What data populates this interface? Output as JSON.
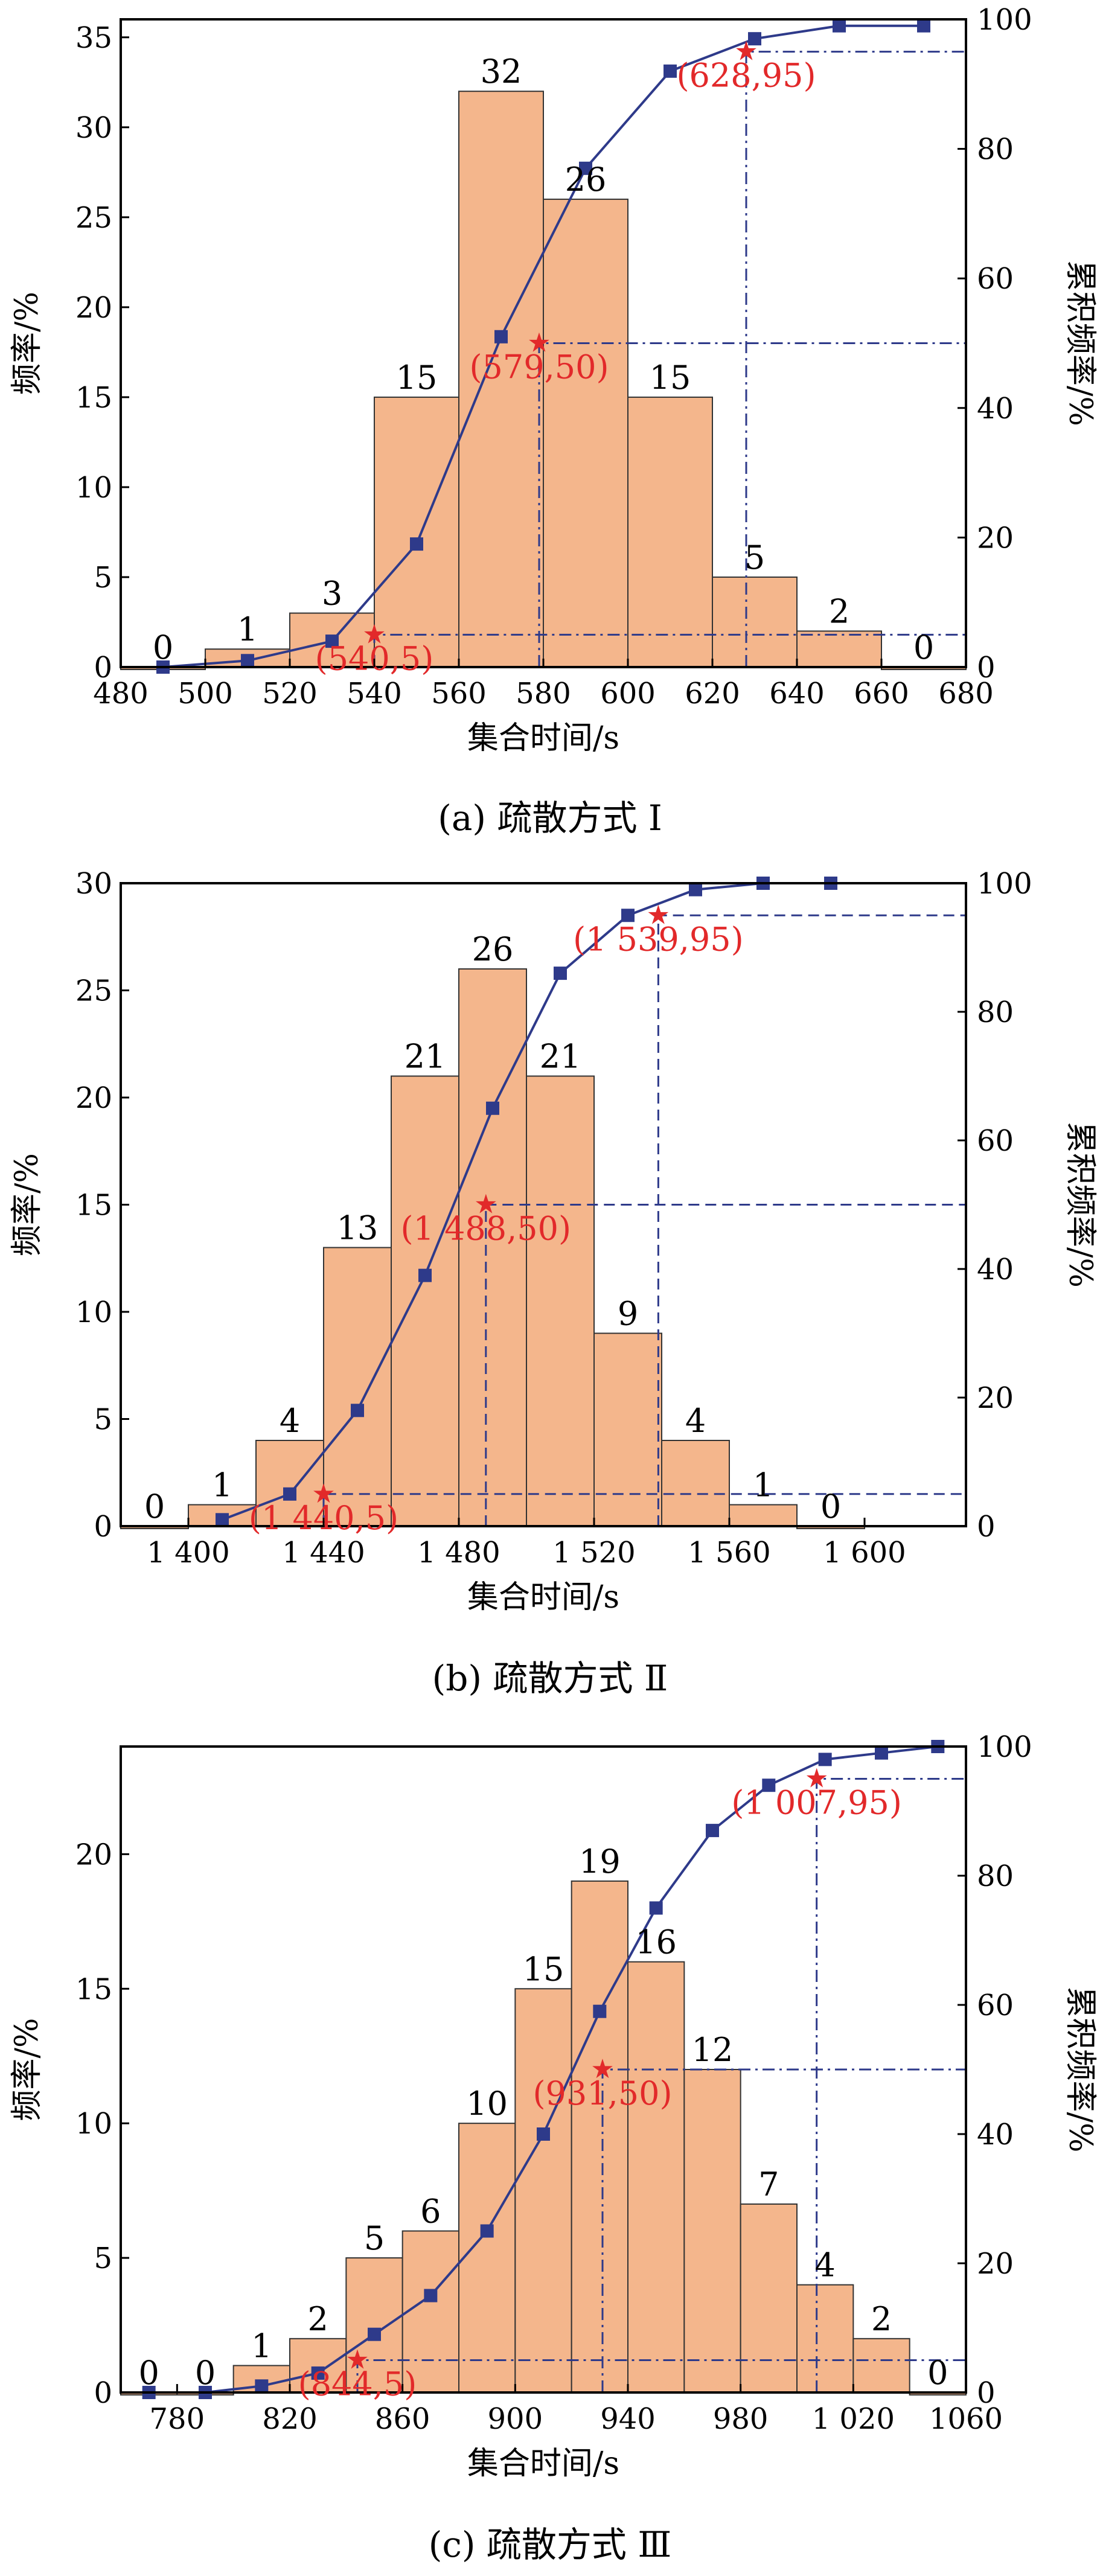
{
  "colors": {
    "bar": "#f4b68c",
    "cumulative": "#2e3a8a",
    "annotation": "#e2292a"
  },
  "chart_data": [
    {
      "type": "bar",
      "caption": "(a) 疏散方式 Ⅰ",
      "xlabel": "集合时间/s",
      "ylabel": "频率/%",
      "y2label": "累积频率/%",
      "xlim": [
        480,
        680
      ],
      "ylim": [
        0,
        36
      ],
      "y2lim": [
        0,
        100
      ],
      "xticks": [
        "480",
        "500",
        "520",
        "540",
        "560",
        "580",
        "600",
        "620",
        "640",
        "660",
        "680"
      ],
      "yticks": [
        "0",
        "5",
        "10",
        "15",
        "20",
        "25",
        "30",
        "35"
      ],
      "y2ticks": [
        "0",
        "20",
        "40",
        "60",
        "80",
        "100"
      ],
      "bin_edges": [
        480,
        500,
        520,
        540,
        560,
        580,
        600,
        620,
        640,
        660,
        680
      ],
      "bins": [
        {
          "start": 480,
          "end": 500,
          "value": 0,
          "label": "0"
        },
        {
          "start": 500,
          "end": 520,
          "value": 1,
          "label": "1"
        },
        {
          "start": 520,
          "end": 540,
          "value": 3,
          "label": "3"
        },
        {
          "start": 540,
          "end": 560,
          "value": 15,
          "label": "15"
        },
        {
          "start": 560,
          "end": 580,
          "value": 32,
          "label": "32"
        },
        {
          "start": 580,
          "end": 600,
          "value": 26,
          "label": "26"
        },
        {
          "start": 600,
          "end": 620,
          "value": 15,
          "label": "15"
        },
        {
          "start": 620,
          "end": 640,
          "value": 5,
          "label": "5"
        },
        {
          "start": 640,
          "end": 660,
          "value": 2,
          "label": "2"
        },
        {
          "start": 660,
          "end": 680,
          "value": 0,
          "label": "0"
        }
      ],
      "cumulative": {
        "x": [
          490,
          510,
          530,
          550,
          570,
          590,
          610,
          630,
          650,
          670
        ],
        "y": [
          0,
          1,
          4,
          19,
          51,
          77,
          92,
          97,
          99,
          99
        ]
      },
      "annotations": [
        {
          "x": 540,
          "y": 5,
          "text": "(540,5)"
        },
        {
          "x": 579,
          "y": 50,
          "text": "(579,50)"
        },
        {
          "x": 628,
          "y": 95,
          "text": "(628,95)"
        }
      ],
      "guide_style": "dash-dot"
    },
    {
      "type": "bar",
      "caption": "(b) 疏散方式 Ⅱ",
      "xlabel": "集合时间/s",
      "ylabel": "频率/%",
      "y2label": "累积频率/%",
      "xlim": [
        1380,
        1630
      ],
      "ylim": [
        0,
        30
      ],
      "y2lim": [
        0,
        100
      ],
      "xticks": [
        "1 400",
        "1 440",
        "1 480",
        "1 520",
        "1 560",
        "1 600"
      ],
      "yticks": [
        "0",
        "5",
        "10",
        "15",
        "20",
        "25",
        "30"
      ],
      "y2ticks": [
        "0",
        "20",
        "40",
        "60",
        "80",
        "100"
      ],
      "bin_edges": [
        1380,
        1400,
        1420,
        1440,
        1460,
        1480,
        1500,
        1520,
        1540,
        1560,
        1580,
        1600
      ],
      "bins": [
        {
          "start": 1380,
          "end": 1400,
          "value": 0,
          "label": "0"
        },
        {
          "start": 1400,
          "end": 1420,
          "value": 1,
          "label": "1"
        },
        {
          "start": 1420,
          "end": 1440,
          "value": 4,
          "label": "4"
        },
        {
          "start": 1440,
          "end": 1460,
          "value": 13,
          "label": "13"
        },
        {
          "start": 1460,
          "end": 1480,
          "value": 21,
          "label": "21"
        },
        {
          "start": 1480,
          "end": 1500,
          "value": 26,
          "label": "26"
        },
        {
          "start": 1500,
          "end": 1520,
          "value": 21,
          "label": "21"
        },
        {
          "start": 1520,
          "end": 1540,
          "value": 9,
          "label": "9"
        },
        {
          "start": 1540,
          "end": 1560,
          "value": 4,
          "label": "4"
        },
        {
          "start": 1560,
          "end": 1580,
          "value": 1,
          "label": "1"
        },
        {
          "start": 1580,
          "end": 1600,
          "value": 0,
          "label": "0"
        }
      ],
      "cumulative": {
        "x": [
          1410,
          1430,
          1450,
          1470,
          1490,
          1510,
          1530,
          1550,
          1570,
          1590
        ],
        "y": [
          1,
          5,
          18,
          39,
          65,
          86,
          95,
          99,
          100,
          100
        ]
      },
      "annotations": [
        {
          "x": 1440,
          "y": 5,
          "text": "(1 440,5)"
        },
        {
          "x": 1488,
          "y": 50,
          "text": "(1 488,50)"
        },
        {
          "x": 1539,
          "y": 95,
          "text": "(1 539,95)"
        }
      ],
      "guide_style": "dashed"
    },
    {
      "type": "bar",
      "caption": "(c) 疏散方式 Ⅲ",
      "xlabel": "集合时间/s",
      "ylabel": "频率/%",
      "y2label": "累积频率/%",
      "xlim": [
        760,
        1060
      ],
      "ylim": [
        0,
        24
      ],
      "y2lim": [
        0,
        100
      ],
      "xticks": [
        "780",
        "820",
        "860",
        "900",
        "940",
        "980",
        "1 020",
        "1060"
      ],
      "yticks": [
        "0",
        "5",
        "10",
        "15",
        "20"
      ],
      "y2ticks": [
        "0",
        "20",
        "40",
        "60",
        "80",
        "100"
      ],
      "bin_edges": [
        760,
        780,
        800,
        820,
        840,
        860,
        880,
        900,
        920,
        940,
        960,
        980,
        1000,
        1020,
        1040,
        1060
      ],
      "bins": [
        {
          "start": 760,
          "end": 780,
          "value": 0,
          "label": "0"
        },
        {
          "start": 780,
          "end": 800,
          "value": 0,
          "label": "0"
        },
        {
          "start": 800,
          "end": 820,
          "value": 1,
          "label": "1"
        },
        {
          "start": 820,
          "end": 840,
          "value": 2,
          "label": "2"
        },
        {
          "start": 840,
          "end": 860,
          "value": 5,
          "label": "5"
        },
        {
          "start": 860,
          "end": 880,
          "value": 6,
          "label": "6"
        },
        {
          "start": 880,
          "end": 900,
          "value": 10,
          "label": "10"
        },
        {
          "start": 900,
          "end": 920,
          "value": 15,
          "label": "15"
        },
        {
          "start": 920,
          "end": 940,
          "value": 19,
          "label": "19"
        },
        {
          "start": 940,
          "end": 960,
          "value": 16,
          "label": "16"
        },
        {
          "start": 960,
          "end": 980,
          "value": 12,
          "label": "12"
        },
        {
          "start": 980,
          "end": 1000,
          "value": 7,
          "label": "7"
        },
        {
          "start": 1000,
          "end": 1020,
          "value": 4,
          "label": "4"
        },
        {
          "start": 1020,
          "end": 1040,
          "value": 2,
          "label": "2"
        },
        {
          "start": 1040,
          "end": 1060,
          "value": 0,
          "label": "0"
        }
      ],
      "cumulative": {
        "x": [
          770,
          790,
          810,
          830,
          850,
          870,
          890,
          910,
          930,
          950,
          970,
          990,
          1010,
          1030,
          1050
        ],
        "y": [
          0,
          0,
          1,
          3,
          9,
          15,
          25,
          40,
          59,
          75,
          87,
          94,
          98,
          99,
          100
        ]
      },
      "annotations": [
        {
          "x": 844,
          "y": 5,
          "text": "(844,5)"
        },
        {
          "x": 931,
          "y": 50,
          "text": "(931,50)"
        },
        {
          "x": 1007,
          "y": 95,
          "text": "(1 007,95)"
        }
      ],
      "guide_style": "dash-dot"
    }
  ]
}
